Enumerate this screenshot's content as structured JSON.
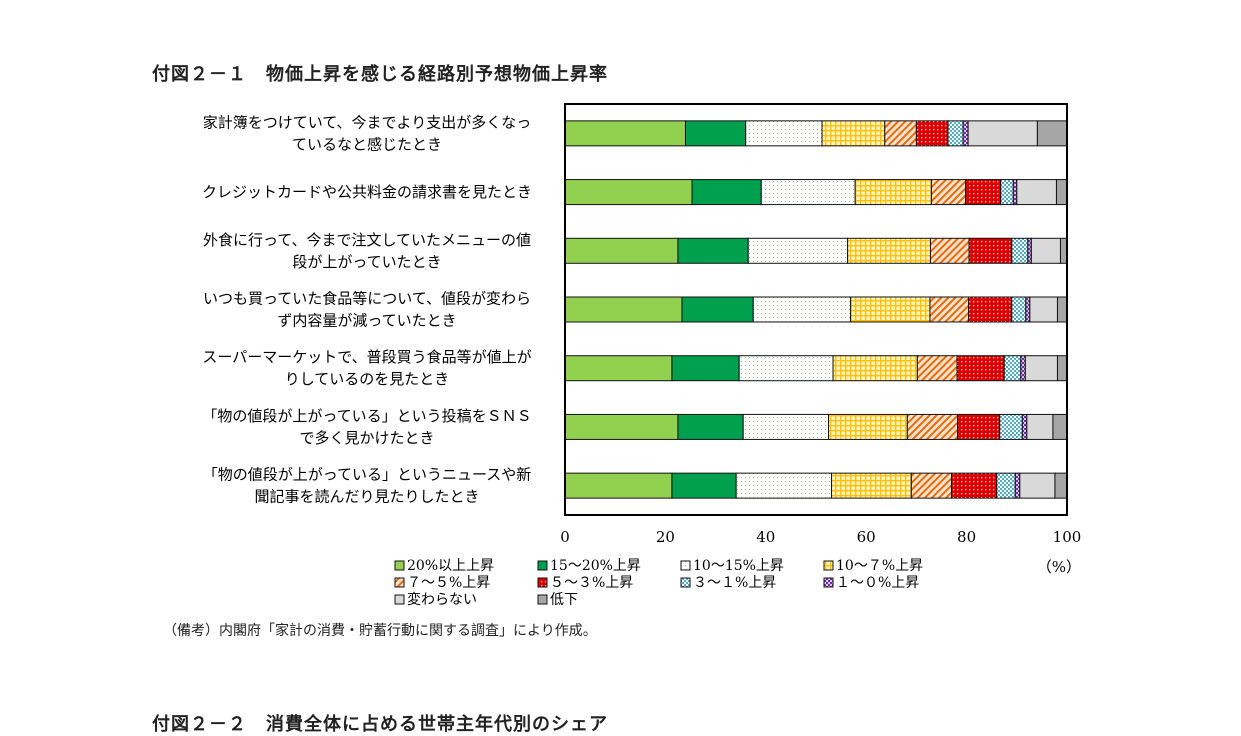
{
  "figure_title": "付図２－１　物価上昇を感じる経路別予想物価上昇率",
  "next_figure_title": "付図２－２　消費全体に占める世帯主年代別のシェア",
  "note": "（備考）内閣府「家計の消費・貯蓄行動に関する調査」により作成。",
  "chart_data": {
    "type": "bar",
    "orientation": "horizontal",
    "stacked": true,
    "categories": [
      [
        "家計簿をつけていて、今までより支出が多くなっ",
        "ているなと感じたとき"
      ],
      [
        "クレジットカードや公共料金の請求書を見たとき"
      ],
      [
        "外食に行って、今まで注文していたメニューの値",
        "段が上がっていたとき"
      ],
      [
        "いつも買っていた食品等について、値段が変わら",
        "ず内容量が減っていたとき"
      ],
      [
        "スーパーマーケットで、普段買う食品等が値上が",
        "りしているのを見たとき"
      ],
      [
        "「物の値段が上がっている」という投稿をＳＮＳ",
        "で多く見かけたとき"
      ],
      [
        "「物の値段が上がっている」というニュースや新",
        "聞記事を読んだり見たりしたとき"
      ]
    ],
    "series": [
      {
        "name": "20%以上上昇",
        "color": "#92d050",
        "pattern": "solid",
        "values": [
          24.0,
          25.3,
          22.5,
          23.3,
          21.3,
          22.5,
          21.3
        ]
      },
      {
        "name": "15～20%上昇",
        "color": "#00a04e",
        "pattern": "solid",
        "values": [
          12.0,
          13.8,
          14.0,
          14.2,
          13.4,
          13.0,
          12.8
        ]
      },
      {
        "name": "10～15%上昇",
        "color": "#ffffff",
        "pattern": "dots",
        "values": [
          15.2,
          18.7,
          19.8,
          19.4,
          18.7,
          17.0,
          19.0
        ]
      },
      {
        "name": "10～７%上昇",
        "color": "#ffc000",
        "pattern": "grid",
        "values": [
          12.5,
          15.2,
          16.5,
          15.8,
          16.8,
          15.7,
          15.9
        ]
      },
      {
        "name": "７～５%上昇",
        "color": "#e46c0a",
        "pattern": "diagonal",
        "values": [
          6.3,
          6.8,
          7.7,
          7.7,
          7.9,
          10.0,
          8.0
        ]
      },
      {
        "name": "５～３%上昇",
        "color": "#e00000",
        "pattern": "dots",
        "values": [
          6.3,
          7.0,
          8.5,
          8.6,
          9.4,
          8.4,
          9.0
        ]
      },
      {
        "name": "３～１%上昇",
        "color": "#4bacc6",
        "pattern": "checker",
        "values": [
          3.0,
          2.5,
          3.2,
          2.8,
          3.3,
          4.5,
          3.7
        ]
      },
      {
        "name": "１～０%上昇",
        "color": "#7030a0",
        "pattern": "checker",
        "values": [
          1.0,
          0.7,
          0.7,
          0.8,
          0.9,
          0.9,
          0.9
        ]
      },
      {
        "name": "変わらない",
        "color": "#d9d9d9",
        "pattern": "solid",
        "values": [
          13.8,
          7.9,
          5.8,
          5.5,
          6.4,
          5.2,
          7.0
        ]
      },
      {
        "name": "低下",
        "color": "#a6a6a6",
        "pattern": "solid",
        "values": [
          5.9,
          2.1,
          1.3,
          1.9,
          1.9,
          2.8,
          2.4
        ]
      }
    ],
    "xlim": [
      0,
      100
    ],
    "xticks": [
      0,
      20,
      40,
      60,
      80,
      100
    ],
    "unit_label": "（%）",
    "legend": "bottom",
    "grid": false
  }
}
